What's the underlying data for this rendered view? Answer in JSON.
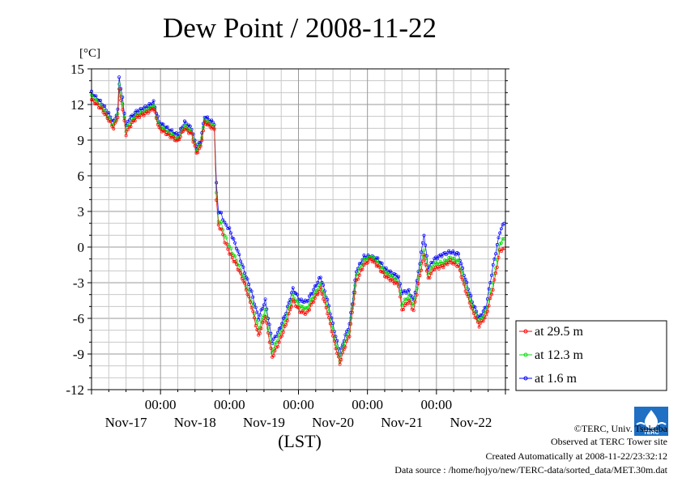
{
  "chart_data": {
    "type": "line",
    "title": "Dew Point / 2008-11-22",
    "ylabel": "[°C]",
    "xlabel": "(LST)",
    "ylim": [
      -12,
      15
    ],
    "yticks": [
      "15",
      "12",
      "9",
      "6",
      "3",
      "0",
      "-3",
      "-6",
      "-9",
      "-12"
    ],
    "ytick_values": [
      15,
      12,
      9,
      6,
      3,
      0,
      -3,
      -6,
      -9,
      -12
    ],
    "xlim_days": [
      0,
      6
    ],
    "xticks": [
      {
        "time": "00:00",
        "date": "Nov-17"
      },
      {
        "time": "00:00",
        "date": "Nov-18"
      },
      {
        "time": "00:00",
        "date": "Nov-19"
      },
      {
        "time": "00:00",
        "date": "Nov-20"
      },
      {
        "time": "00:00",
        "date": "Nov-21"
      },
      {
        "time": "00:00",
        "date": "Nov-22"
      }
    ],
    "xtick_days": [
      1,
      2,
      3,
      4,
      5
    ],
    "grid": true,
    "legend_placement": "right",
    "series": [
      {
        "name": "at 29.5 m",
        "color": "#ff0000",
        "key": [
          [
            0.0,
            12.4
          ],
          [
            0.15,
            11.6
          ],
          [
            0.25,
            10.7
          ],
          [
            0.32,
            10.0
          ],
          [
            0.38,
            11.0
          ],
          [
            0.4,
            13.2
          ],
          [
            0.45,
            11.6
          ],
          [
            0.5,
            9.5
          ],
          [
            0.55,
            10.1
          ],
          [
            0.65,
            10.9
          ],
          [
            0.8,
            11.3
          ],
          [
            0.9,
            11.7
          ],
          [
            0.98,
            10.0
          ],
          [
            1.1,
            9.5
          ],
          [
            1.25,
            8.9
          ],
          [
            1.35,
            10.0
          ],
          [
            1.45,
            9.5
          ],
          [
            1.52,
            7.9
          ],
          [
            1.58,
            8.4
          ],
          [
            1.64,
            10.5
          ],
          [
            1.78,
            9.9
          ],
          [
            1.81,
            4.0
          ],
          [
            1.84,
            1.8
          ],
          [
            1.88,
            1.5
          ],
          [
            1.93,
            0.5
          ],
          [
            2.0,
            -0.5
          ],
          [
            2.1,
            -1.5
          ],
          [
            2.2,
            -2.8
          ],
          [
            2.32,
            -5.0
          ],
          [
            2.42,
            -7.5
          ],
          [
            2.52,
            -5.8
          ],
          [
            2.62,
            -9.3
          ],
          [
            2.72,
            -8.0
          ],
          [
            2.82,
            -6.5
          ],
          [
            2.92,
            -4.5
          ],
          [
            3.02,
            -5.4
          ],
          [
            3.12,
            -5.6
          ],
          [
            3.22,
            -4.5
          ],
          [
            3.32,
            -3.5
          ],
          [
            3.42,
            -5.5
          ],
          [
            3.52,
            -8.0
          ],
          [
            3.6,
            -9.8
          ],
          [
            3.66,
            -8.6
          ],
          [
            3.74,
            -7.4
          ],
          [
            3.84,
            -2.9
          ],
          [
            3.95,
            -1.5
          ],
          [
            4.05,
            -1.0
          ],
          [
            4.15,
            -1.6
          ],
          [
            4.25,
            -2.4
          ],
          [
            4.35,
            -2.8
          ],
          [
            4.45,
            -3.2
          ],
          [
            4.5,
            -5.3
          ],
          [
            4.6,
            -4.5
          ],
          [
            4.67,
            -5.4
          ],
          [
            4.76,
            -2.4
          ],
          [
            4.82,
            -0.7
          ],
          [
            4.88,
            -2.7
          ],
          [
            4.97,
            -1.8
          ],
          [
            5.1,
            -1.6
          ],
          [
            5.2,
            -1.2
          ],
          [
            5.32,
            -1.6
          ],
          [
            5.42,
            -3.6
          ],
          [
            5.52,
            -5.3
          ],
          [
            5.62,
            -6.6
          ],
          [
            5.72,
            -5.8
          ],
          [
            5.82,
            -3.5
          ],
          [
            5.92,
            -0.3
          ],
          [
            5.98,
            -0.1
          ]
        ]
      },
      {
        "name": "at 12.3 m",
        "color": "#00dd00",
        "key": [
          [
            0.0,
            12.7
          ],
          [
            0.15,
            11.8
          ],
          [
            0.25,
            10.9
          ],
          [
            0.32,
            10.2
          ],
          [
            0.38,
            11.2
          ],
          [
            0.4,
            13.6
          ],
          [
            0.45,
            12.0
          ],
          [
            0.5,
            9.8
          ],
          [
            0.55,
            10.4
          ],
          [
            0.65,
            11.1
          ],
          [
            0.8,
            11.5
          ],
          [
            0.9,
            11.9
          ],
          [
            0.98,
            10.2
          ],
          [
            1.1,
            9.7
          ],
          [
            1.25,
            9.1
          ],
          [
            1.35,
            10.2
          ],
          [
            1.45,
            9.7
          ],
          [
            1.52,
            8.1
          ],
          [
            1.58,
            8.6
          ],
          [
            1.64,
            10.7
          ],
          [
            1.78,
            10.1
          ],
          [
            1.81,
            4.5
          ],
          [
            1.84,
            2.2
          ],
          [
            1.88,
            2.0
          ],
          [
            1.93,
            1.0
          ],
          [
            2.0,
            0.0
          ],
          [
            2.1,
            -1.1
          ],
          [
            2.2,
            -2.5
          ],
          [
            2.32,
            -4.6
          ],
          [
            2.42,
            -7.0
          ],
          [
            2.52,
            -5.3
          ],
          [
            2.62,
            -8.8
          ],
          [
            2.72,
            -7.5
          ],
          [
            2.82,
            -6.0
          ],
          [
            2.92,
            -4.1
          ],
          [
            3.02,
            -5.0
          ],
          [
            3.12,
            -5.2
          ],
          [
            3.22,
            -4.1
          ],
          [
            3.32,
            -3.1
          ],
          [
            3.42,
            -5.0
          ],
          [
            3.52,
            -7.6
          ],
          [
            3.6,
            -9.5
          ],
          [
            3.66,
            -8.2
          ],
          [
            3.74,
            -7.0
          ],
          [
            3.84,
            -2.4
          ],
          [
            3.95,
            -1.1
          ],
          [
            4.05,
            -0.8
          ],
          [
            4.15,
            -1.3
          ],
          [
            4.25,
            -2.1
          ],
          [
            4.35,
            -2.5
          ],
          [
            4.45,
            -2.9
          ],
          [
            4.5,
            -4.8
          ],
          [
            4.6,
            -4.1
          ],
          [
            4.67,
            -5.0
          ],
          [
            4.76,
            -1.9
          ],
          [
            4.82,
            -0.2
          ],
          [
            4.88,
            -2.3
          ],
          [
            4.97,
            -1.4
          ],
          [
            5.1,
            -1.3
          ],
          [
            5.2,
            -0.9
          ],
          [
            5.32,
            -1.2
          ],
          [
            5.42,
            -3.2
          ],
          [
            5.52,
            -5.0
          ],
          [
            5.62,
            -6.3
          ],
          [
            5.72,
            -5.4
          ],
          [
            5.82,
            -3.0
          ],
          [
            5.92,
            0.3
          ],
          [
            5.98,
            0.7
          ]
        ]
      },
      {
        "name": "at 1.6 m",
        "color": "#0000ff",
        "key": [
          [
            0.0,
            13.0
          ],
          [
            0.15,
            12.1
          ],
          [
            0.25,
            11.2
          ],
          [
            0.32,
            10.5
          ],
          [
            0.38,
            11.5
          ],
          [
            0.4,
            14.3
          ],
          [
            0.45,
            12.5
          ],
          [
            0.5,
            10.2
          ],
          [
            0.55,
            10.8
          ],
          [
            0.65,
            11.4
          ],
          [
            0.8,
            11.8
          ],
          [
            0.9,
            12.2
          ],
          [
            0.98,
            10.5
          ],
          [
            1.1,
            10.0
          ],
          [
            1.25,
            9.4
          ],
          [
            1.35,
            10.5
          ],
          [
            1.45,
            10.0
          ],
          [
            1.52,
            8.4
          ],
          [
            1.58,
            8.9
          ],
          [
            1.64,
            11.0
          ],
          [
            1.78,
            10.4
          ],
          [
            1.81,
            5.3
          ],
          [
            1.84,
            3.0
          ],
          [
            1.88,
            2.8
          ],
          [
            1.93,
            2.0
          ],
          [
            2.0,
            1.5
          ],
          [
            2.1,
            0.0
          ],
          [
            2.2,
            -1.8
          ],
          [
            2.32,
            -3.8
          ],
          [
            2.42,
            -6.0
          ],
          [
            2.52,
            -4.5
          ],
          [
            2.62,
            -8.0
          ],
          [
            2.72,
            -7.0
          ],
          [
            2.82,
            -5.5
          ],
          [
            2.92,
            -3.5
          ],
          [
            3.02,
            -4.5
          ],
          [
            3.12,
            -4.6
          ],
          [
            3.22,
            -3.6
          ],
          [
            3.32,
            -2.5
          ],
          [
            3.42,
            -4.5
          ],
          [
            3.52,
            -7.0
          ],
          [
            3.6,
            -9.0
          ],
          [
            3.66,
            -7.8
          ],
          [
            3.74,
            -6.5
          ],
          [
            3.84,
            -2.0
          ],
          [
            3.95,
            -0.8
          ],
          [
            4.05,
            -0.8
          ],
          [
            4.15,
            -1.0
          ],
          [
            4.25,
            -1.8
          ],
          [
            4.35,
            -2.2
          ],
          [
            4.45,
            -2.5
          ],
          [
            4.5,
            -3.8
          ],
          [
            4.6,
            -3.7
          ],
          [
            4.67,
            -4.5
          ],
          [
            4.76,
            -1.3
          ],
          [
            4.82,
            1.1
          ],
          [
            4.88,
            -1.8
          ],
          [
            4.97,
            -1.0
          ],
          [
            5.1,
            -0.6
          ],
          [
            5.2,
            -0.4
          ],
          [
            5.32,
            -0.6
          ],
          [
            5.42,
            -2.7
          ],
          [
            5.52,
            -4.6
          ],
          [
            5.62,
            -6.0
          ],
          [
            5.72,
            -5.0
          ],
          [
            5.82,
            -1.6
          ],
          [
            5.92,
            1.3
          ],
          [
            5.98,
            2.0
          ]
        ]
      }
    ]
  },
  "footer": {
    "copyright": "©TERC, Univ. Tsukuba",
    "observed": "Observed at TERC Tower site",
    "created": "Created Automatically at 2008-11-22/23:32:12",
    "source": "Data source : /home/hojyo/new/TERC-data/sorted_data/MET.30m.dat"
  },
  "logo": {
    "text": "TERC"
  }
}
